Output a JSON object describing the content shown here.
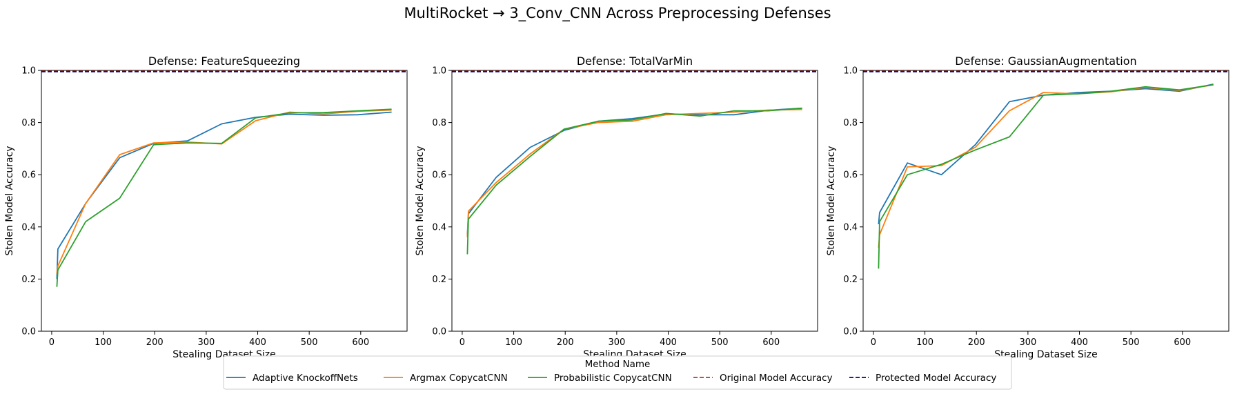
{
  "figure": {
    "title": "MultiRocket → 3_Conv_CNN Across Preprocessing Defenses"
  },
  "legend": {
    "title": "Method Name",
    "placement": "bottom-center",
    "entries": [
      {
        "label": "Adaptive KnockoffNets",
        "color": "#1f77b4",
        "style": "solid"
      },
      {
        "label": "Argmax CopycatCNN",
        "color": "#ff7f0e",
        "style": "solid"
      },
      {
        "label": "Probabilistic CopycatCNN",
        "color": "#2ca02c",
        "style": "solid"
      },
      {
        "label": "Original Model Accuracy",
        "color": "#d62728",
        "style": "dashed"
      },
      {
        "label": "Protected Model Accuracy",
        "color": "#00008b",
        "style": "dashed"
      }
    ]
  },
  "chart_data": [
    {
      "type": "line",
      "title": "Defense: FeatureSqueezing",
      "xlabel": "Stealing Dataset Size",
      "ylabel": "Stolen Model Accuracy",
      "xlim": [
        -20,
        690
      ],
      "ylim": [
        0,
        1.0
      ],
      "xticks": [
        0,
        100,
        200,
        300,
        400,
        500,
        600
      ],
      "yticks": [
        0.0,
        0.2,
        0.4,
        0.6,
        0.8,
        1.0
      ],
      "grid": false,
      "hlines": [
        {
          "name": "Original Model Accuracy",
          "y": 0.997,
          "color": "#d62728"
        },
        {
          "name": "Protected Model Accuracy",
          "y": 0.995,
          "color": "#00008b"
        }
      ],
      "series": [
        {
          "name": "Adaptive KnockoffNets",
          "color": "#1f77b4",
          "x": [
            10,
            12,
            66,
            132,
            198,
            264,
            330,
            396,
            462,
            528,
            594,
            660
          ],
          "y": [
            0.2,
            0.315,
            0.49,
            0.665,
            0.72,
            0.73,
            0.795,
            0.82,
            0.832,
            0.828,
            0.83,
            0.84
          ]
        },
        {
          "name": "Argmax CopycatCNN",
          "color": "#ff7f0e",
          "x": [
            10,
            12,
            66,
            132,
            198,
            264,
            330,
            396,
            462,
            528,
            594,
            660
          ],
          "y": [
            0.22,
            0.25,
            0.49,
            0.677,
            0.722,
            0.725,
            0.718,
            0.807,
            0.84,
            0.833,
            0.843,
            0.848
          ]
        },
        {
          "name": "Probabilistic CopycatCNN",
          "color": "#2ca02c",
          "x": [
            10,
            12,
            66,
            132,
            198,
            264,
            330,
            396,
            462,
            528,
            594,
            660
          ],
          "y": [
            0.17,
            0.235,
            0.42,
            0.51,
            0.715,
            0.722,
            0.72,
            0.818,
            0.837,
            0.838,
            0.845,
            0.851
          ]
        }
      ]
    },
    {
      "type": "line",
      "title": "Defense: TotalVarMin",
      "xlabel": "Stealing Dataset Size",
      "ylabel": "Stolen Model Accuracy",
      "xlim": [
        -20,
        690
      ],
      "ylim": [
        0,
        1.0
      ],
      "xticks": [
        0,
        100,
        200,
        300,
        400,
        500,
        600
      ],
      "yticks": [
        0.0,
        0.2,
        0.4,
        0.6,
        0.8,
        1.0
      ],
      "grid": false,
      "hlines": [
        {
          "name": "Original Model Accuracy",
          "y": 0.997,
          "color": "#d62728"
        },
        {
          "name": "Protected Model Accuracy",
          "y": 0.995,
          "color": "#00008b"
        }
      ],
      "series": [
        {
          "name": "Adaptive KnockoffNets",
          "color": "#1f77b4",
          "x": [
            10,
            12,
            66,
            132,
            198,
            264,
            330,
            396,
            462,
            528,
            594,
            660
          ],
          "y": [
            0.37,
            0.45,
            0.59,
            0.705,
            0.77,
            0.805,
            0.815,
            0.833,
            0.83,
            0.83,
            0.847,
            0.855
          ]
        },
        {
          "name": "Argmax CopycatCNN",
          "color": "#ff7f0e",
          "x": [
            10,
            12,
            66,
            132,
            198,
            264,
            330,
            396,
            462,
            528,
            594,
            660
          ],
          "y": [
            0.36,
            0.46,
            0.57,
            0.68,
            0.775,
            0.8,
            0.805,
            0.83,
            0.835,
            0.84,
            0.848,
            0.85
          ]
        },
        {
          "name": "Probabilistic CopycatCNN",
          "color": "#2ca02c",
          "x": [
            10,
            12,
            66,
            132,
            198,
            264,
            330,
            396,
            462,
            528,
            594,
            660
          ],
          "y": [
            0.295,
            0.43,
            0.56,
            0.67,
            0.775,
            0.805,
            0.81,
            0.835,
            0.825,
            0.845,
            0.845,
            0.855
          ]
        }
      ]
    },
    {
      "type": "line",
      "title": "Defense: GaussianAugmentation",
      "xlabel": "Stealing Dataset Size",
      "ylabel": "Stolen Model Accuracy",
      "xlim": [
        -20,
        690
      ],
      "ylim": [
        0,
        1.0
      ],
      "xticks": [
        0,
        100,
        200,
        300,
        400,
        500,
        600
      ],
      "yticks": [
        0.0,
        0.2,
        0.4,
        0.6,
        0.8,
        1.0
      ],
      "grid": false,
      "hlines": [
        {
          "name": "Original Model Accuracy",
          "y": 0.997,
          "color": "#d62728"
        },
        {
          "name": "Protected Model Accuracy",
          "y": 0.995,
          "color": "#00008b"
        }
      ],
      "series": [
        {
          "name": "Adaptive KnockoffNets",
          "color": "#1f77b4",
          "x": [
            10,
            12,
            66,
            132,
            198,
            264,
            330,
            396,
            462,
            528,
            594,
            660
          ],
          "y": [
            0.41,
            0.455,
            0.645,
            0.6,
            0.715,
            0.88,
            0.905,
            0.915,
            0.92,
            0.93,
            0.92,
            0.947
          ]
        },
        {
          "name": "Argmax CopycatCNN",
          "color": "#ff7f0e",
          "x": [
            10,
            12,
            66,
            132,
            198,
            264,
            330,
            396,
            462,
            528,
            594,
            660
          ],
          "y": [
            0.32,
            0.37,
            0.63,
            0.635,
            0.705,
            0.845,
            0.915,
            0.91,
            0.918,
            0.935,
            0.923,
            0.945
          ]
        },
        {
          "name": "Probabilistic CopycatCNN",
          "color": "#2ca02c",
          "x": [
            10,
            12,
            66,
            132,
            198,
            264,
            330,
            396,
            462,
            528,
            594,
            660
          ],
          "y": [
            0.24,
            0.42,
            0.6,
            0.64,
            0.695,
            0.745,
            0.905,
            0.91,
            0.92,
            0.937,
            0.925,
            0.945
          ]
        }
      ]
    }
  ]
}
